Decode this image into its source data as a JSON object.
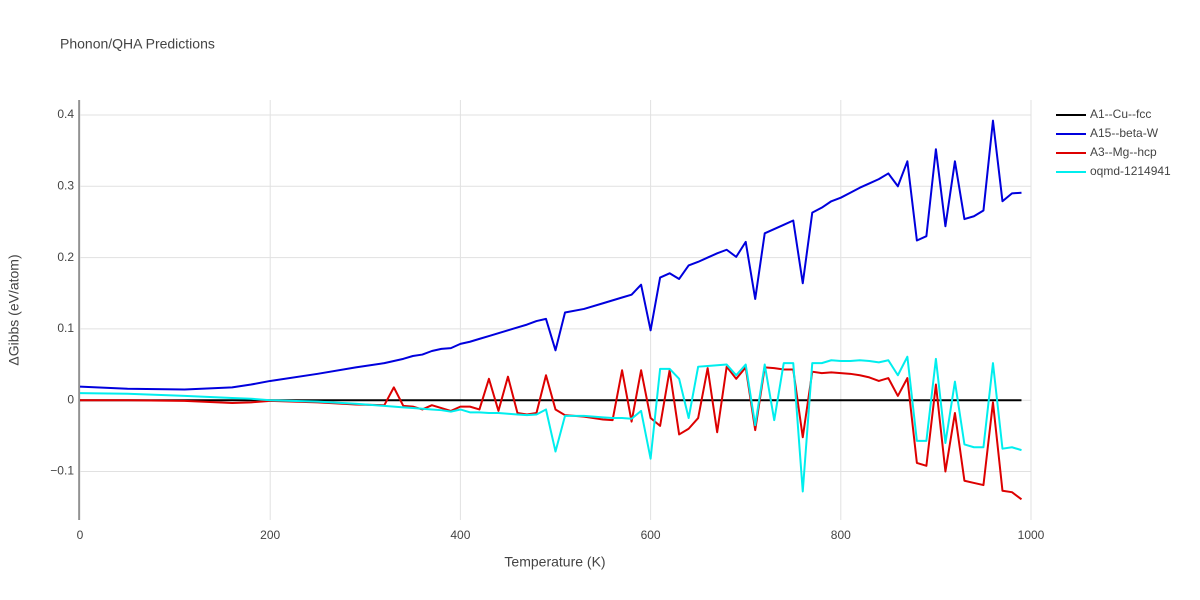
{
  "chart_data": {
    "type": "line",
    "title": "Phonon/QHA Predictions",
    "x_label": "Temperature (K)",
    "y_label": "ΔGibbs (eV/atom)",
    "x": [
      0,
      50,
      110,
      160,
      180,
      200,
      250,
      290,
      320,
      330,
      340,
      350,
      360,
      370,
      380,
      390,
      400,
      410,
      420,
      430,
      440,
      450,
      460,
      470,
      480,
      490,
      500,
      510,
      530,
      550,
      560,
      570,
      580,
      590,
      600,
      610,
      620,
      630,
      640,
      650,
      660,
      670,
      680,
      690,
      700,
      710,
      720,
      730,
      740,
      750,
      760,
      770,
      780,
      790,
      800,
      810,
      820,
      830,
      840,
      850,
      860,
      870,
      880,
      890,
      900,
      910,
      920,
      930,
      940,
      950,
      960,
      970,
      980,
      990
    ],
    "series": [
      {
        "name": "A1--Cu--fcc",
        "color": "#000000",
        "values": [
          0,
          0,
          0,
          0,
          0,
          0,
          0,
          0,
          0,
          0,
          0,
          0,
          0,
          0,
          0,
          0,
          0,
          0,
          0,
          0,
          0,
          0,
          0,
          0,
          0,
          0,
          0,
          0,
          0,
          0,
          0,
          0,
          0,
          0,
          0,
          0,
          0,
          0,
          0,
          0,
          0,
          0,
          0,
          0,
          0,
          0,
          0,
          0,
          0,
          0,
          0,
          0,
          0,
          0,
          0,
          0,
          0,
          0,
          0,
          0,
          0,
          0,
          0,
          0,
          0,
          0,
          0,
          0,
          0,
          0,
          0,
          0,
          0,
          0
        ]
      },
      {
        "name": "A15--beta-W",
        "color": "#0000dd",
        "values": [
          0.019,
          0.016,
          0.015,
          0.018,
          0.022,
          0.027,
          0.037,
          0.046,
          0.052,
          0.055,
          0.058,
          0.062,
          0.064,
          0.069,
          0.072,
          0.073,
          0.079,
          0.082,
          0.086,
          0.09,
          0.094,
          0.098,
          0.102,
          0.106,
          0.111,
          0.114,
          0.07,
          0.123,
          0.128,
          0.136,
          0.14,
          0.144,
          0.148,
          0.162,
          0.098,
          0.172,
          0.178,
          0.17,
          0.189,
          0.194,
          0.2,
          0.206,
          0.211,
          0.201,
          0.222,
          0.142,
          0.234,
          0.24,
          0.246,
          0.252,
          0.164,
          0.263,
          0.27,
          0.279,
          0.284,
          0.291,
          0.298,
          0.304,
          0.31,
          0.318,
          0.3,
          0.335,
          0.224,
          0.23,
          0.352,
          0.244,
          0.335,
          0.254,
          0.258,
          0.266,
          0.392,
          0.279,
          0.29,
          0.291
        ]
      },
      {
        "name": "A3--Mg--hcp",
        "color": "#dd0000",
        "values": [
          0,
          0,
          -0.001,
          -0.004,
          -0.003,
          -0.001,
          -0.003,
          -0.006,
          -0.007,
          0.018,
          -0.008,
          -0.009,
          -0.013,
          -0.007,
          -0.011,
          -0.015,
          -0.009,
          -0.009,
          -0.013,
          0.03,
          -0.015,
          0.033,
          -0.018,
          -0.02,
          -0.018,
          0.035,
          -0.013,
          -0.021,
          -0.023,
          -0.027,
          -0.028,
          0.042,
          -0.03,
          0.042,
          -0.025,
          -0.036,
          0.042,
          -0.048,
          -0.04,
          -0.025,
          0.045,
          -0.045,
          0.047,
          0.03,
          0.046,
          -0.042,
          0.046,
          0.045,
          0.043,
          0.043,
          -0.052,
          0.04,
          0.038,
          0.039,
          0.038,
          0.037,
          0.035,
          0.032,
          0.027,
          0.031,
          0.006,
          0.031,
          -0.088,
          -0.092,
          0.022,
          -0.1,
          -0.018,
          -0.113,
          -0.116,
          -0.119,
          -0.003,
          -0.127,
          -0.129,
          -0.139
        ]
      },
      {
        "name": "oqmd-1214941",
        "color": "#00eeee",
        "values": [
          0.01,
          0.009,
          0.006,
          0.003,
          0.002,
          0,
          -0.002,
          -0.005,
          -0.008,
          -0.009,
          -0.01,
          -0.011,
          -0.012,
          -0.013,
          -0.014,
          -0.016,
          -0.013,
          -0.017,
          -0.017,
          -0.018,
          -0.018,
          -0.019,
          -0.02,
          -0.021,
          -0.02,
          -0.013,
          -0.072,
          -0.022,
          -0.022,
          -0.024,
          -0.025,
          -0.025,
          -0.026,
          -0.015,
          -0.082,
          0.044,
          0.044,
          0.03,
          -0.025,
          0.047,
          0.048,
          0.049,
          0.05,
          0.035,
          0.05,
          -0.035,
          0.05,
          -0.028,
          0.052,
          0.052,
          -0.128,
          0.052,
          0.052,
          0.056,
          0.055,
          0.055,
          0.056,
          0.055,
          0.053,
          0.056,
          0.035,
          0.061,
          -0.057,
          -0.057,
          0.058,
          -0.06,
          0.026,
          -0.062,
          -0.066,
          -0.066,
          0.052,
          -0.068,
          -0.066,
          -0.07
        ]
      }
    ],
    "xlim": [
      0,
      1000
    ],
    "xticks": [
      0,
      200,
      400,
      600,
      800,
      1000
    ],
    "ylim": [
      -0.168,
      0.421
    ],
    "yticks": [
      {
        "value": -0.1,
        "label": "−0.1"
      },
      0,
      0.1,
      0.2,
      0.3,
      0.4
    ],
    "grid": true,
    "legend": "top-right"
  }
}
